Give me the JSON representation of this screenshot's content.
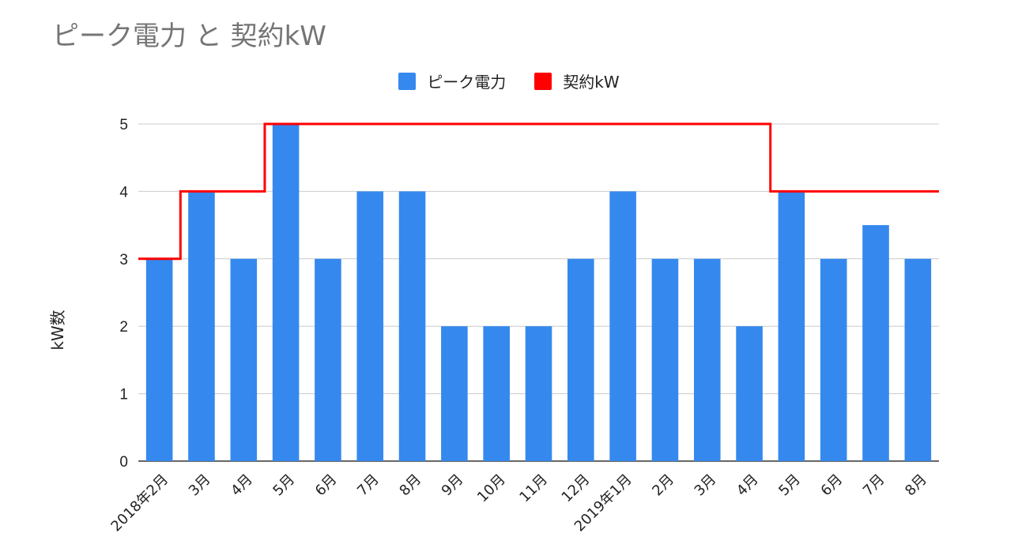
{
  "chart_data": {
    "type": "bar",
    "title": "ピーク電力 と 契約kW",
    "xlabel": "",
    "ylabel": "kW数",
    "ylim": [
      0,
      5
    ],
    "yticks": [
      0,
      1,
      2,
      3,
      4,
      5
    ],
    "grid": true,
    "legend_position": "top-center",
    "categories": [
      "2018年2月",
      "3月",
      "4月",
      "5月",
      "6月",
      "7月",
      "8月",
      "9月",
      "10月",
      "11月",
      "12月",
      "2019年1月",
      "2月",
      "3月",
      "4月",
      "5月",
      "6月",
      "7月",
      "8月"
    ],
    "series": [
      {
        "name": "ピーク電力",
        "type": "bar",
        "color": "#3589ee",
        "values": [
          3,
          4,
          3,
          5,
          3,
          4,
          4,
          2,
          2,
          2,
          3,
          4,
          3,
          3,
          2,
          4,
          3,
          3.5,
          3
        ]
      },
      {
        "name": "契約kW",
        "type": "step-line",
        "color": "#ff0000",
        "values": [
          3,
          4,
          4,
          5,
          5,
          5,
          5,
          5,
          5,
          5,
          5,
          5,
          5,
          5,
          5,
          4,
          4,
          4,
          4
        ]
      }
    ]
  }
}
